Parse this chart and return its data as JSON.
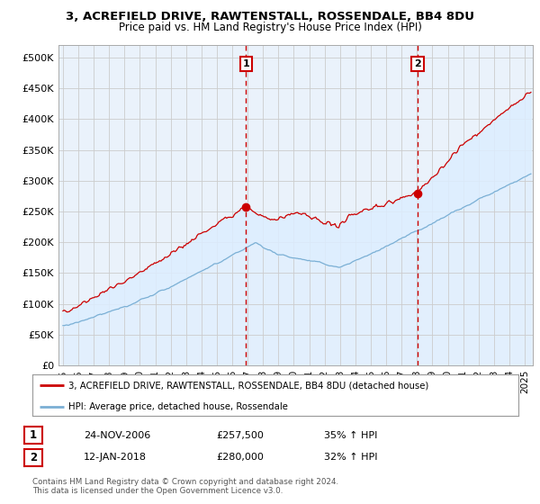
{
  "title1": "3, ACREFIELD DRIVE, RAWTENSTALL, ROSSENDALE, BB4 8DU",
  "title2": "Price paid vs. HM Land Registry's House Price Index (HPI)",
  "ylabel_ticks": [
    "£0",
    "£50K",
    "£100K",
    "£150K",
    "£200K",
    "£250K",
    "£300K",
    "£350K",
    "£400K",
    "£450K",
    "£500K"
  ],
  "ytick_vals": [
    0,
    50000,
    100000,
    150000,
    200000,
    250000,
    300000,
    350000,
    400000,
    450000,
    500000
  ],
  "ylim": [
    0,
    520000
  ],
  "xlim_start": 1994.7,
  "xlim_end": 2025.5,
  "purchase1_x": 2006.9,
  "purchase1_y": 257500,
  "purchase2_x": 2018.04,
  "purchase2_y": 280000,
  "line1_color": "#cc0000",
  "line2_color": "#7bafd4",
  "fill_color": "#ddeeff",
  "vline_color": "#cc0000",
  "grid_color": "#cccccc",
  "bg_color": "#ffffff",
  "plot_bg_color": "#eaf2fb",
  "legend1_text": "3, ACREFIELD DRIVE, RAWTENSTALL, ROSSENDALE, BB4 8DU (detached house)",
  "legend2_text": "HPI: Average price, detached house, Rossendale",
  "ann1_date": "24-NOV-2006",
  "ann1_price": "£257,500",
  "ann1_hpi": "35% ↑ HPI",
  "ann2_date": "12-JAN-2018",
  "ann2_price": "£280,000",
  "ann2_hpi": "32% ↑ HPI",
  "copyright_text": "Contains HM Land Registry data © Crown copyright and database right 2024.\nThis data is licensed under the Open Government Licence v3.0.",
  "xtick_years": [
    1995,
    1996,
    1997,
    1998,
    1999,
    2000,
    2001,
    2002,
    2003,
    2004,
    2005,
    2006,
    2007,
    2008,
    2009,
    2010,
    2011,
    2012,
    2013,
    2014,
    2015,
    2016,
    2017,
    2018,
    2019,
    2020,
    2021,
    2022,
    2023,
    2024,
    2025
  ]
}
